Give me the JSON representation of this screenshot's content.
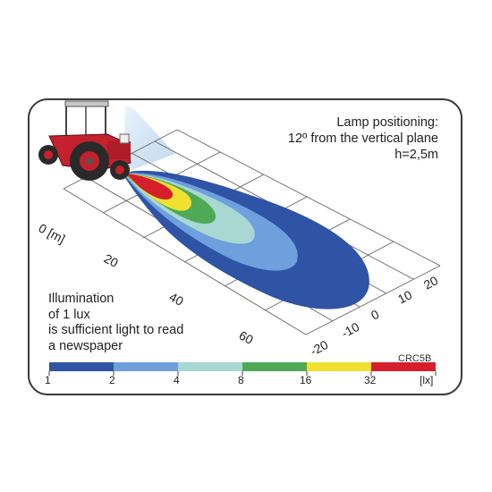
{
  "lamp_positioning": {
    "line1": "Lamp positioning:",
    "line2": "12º from the vertical plane",
    "line3": "h=2,5m"
  },
  "note": {
    "line1": "Illumination",
    "line2": "of 1 lux",
    "line3": "is sufficient light to read",
    "line4": "a newspaper"
  },
  "model_code": "CRC5B",
  "distance_axis": {
    "unit_label": "0 [m]",
    "ticks": [
      "20",
      "40",
      "60"
    ]
  },
  "lateral_axis": {
    "ticks": [
      "20",
      "10",
      "0",
      "-10",
      "-20"
    ]
  },
  "color_scale": {
    "unit": "[lx]",
    "stops": [
      {
        "label": "1",
        "color": "#2f54a6"
      },
      {
        "label": "2",
        "color": "#6f9fdd"
      },
      {
        "label": "4",
        "color": "#a9d7d2"
      },
      {
        "label": "8",
        "color": "#4eaa56"
      },
      {
        "label": "16",
        "color": "#f0e130"
      },
      {
        "label": "32",
        "color": "#d51f2b"
      }
    ]
  },
  "colors": {
    "border": "#3a3a3a",
    "grid": "#666666",
    "beam": "#cfe2f2"
  }
}
